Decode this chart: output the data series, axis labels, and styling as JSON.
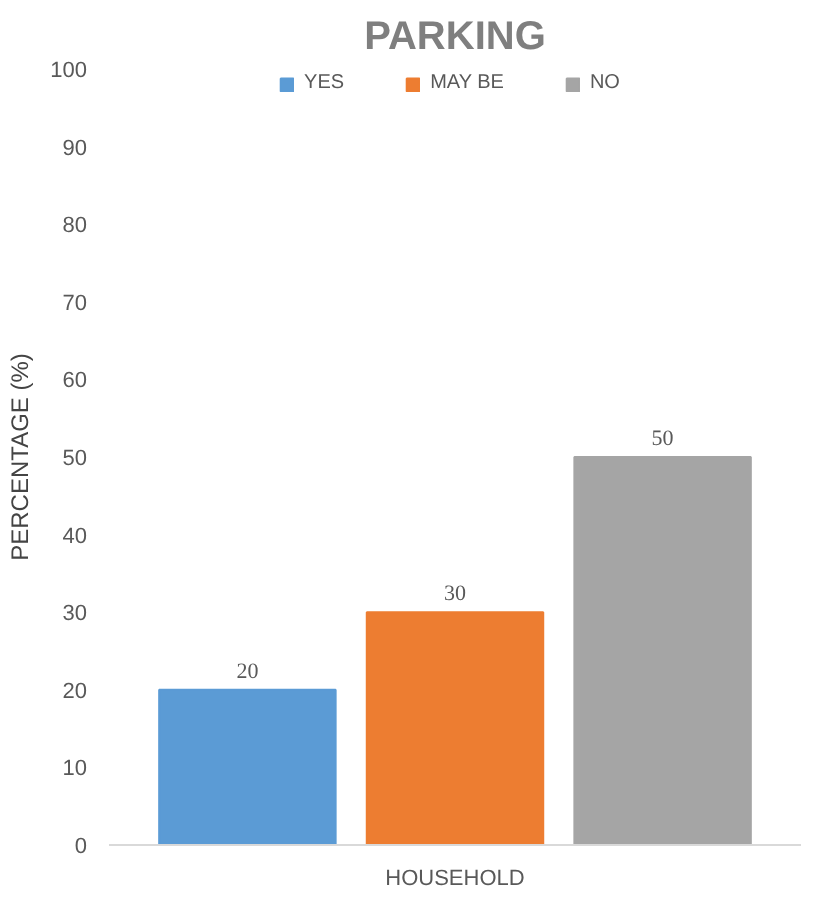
{
  "chart_data": {
    "type": "bar",
    "title": "PARKING",
    "ylabel": "PERCENTAGE (%)",
    "categories": [
      "HOUSEHOLD"
    ],
    "series": [
      {
        "name": "YES",
        "color": "#5b9bd5",
        "values": [
          20
        ]
      },
      {
        "name": "MAY BE",
        "color": "#ed7d31",
        "values": [
          30
        ]
      },
      {
        "name": "NO",
        "color": "#a5a5a5",
        "values": [
          50
        ]
      }
    ],
    "ylim": [
      0,
      100
    ],
    "yticks": [
      0,
      10,
      20,
      30,
      40,
      50,
      60,
      70,
      80,
      90,
      100
    ],
    "grid": false,
    "legend": "top",
    "data_labels": true
  }
}
